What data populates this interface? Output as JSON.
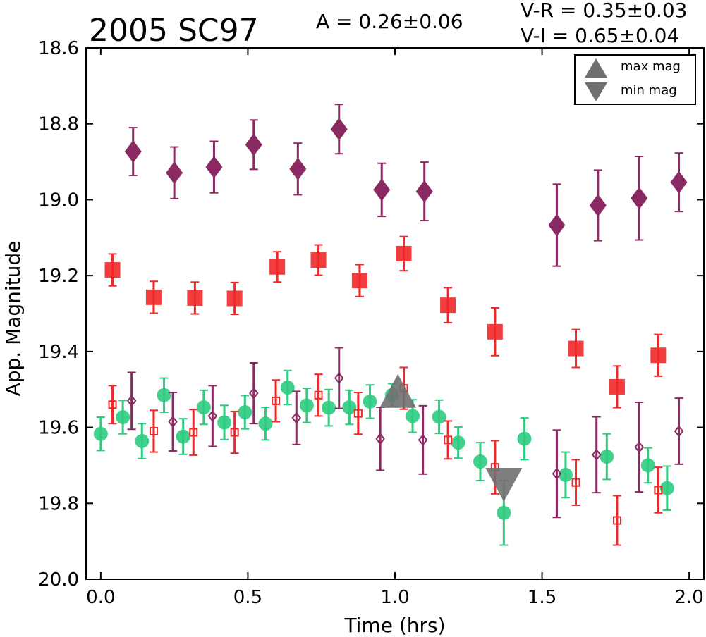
{
  "chart_data": {
    "type": "scatter",
    "title": "2005 SC97",
    "annotations": {
      "amplitude": "A  = 0.26±0.06",
      "v_r": "V-R = 0.35±0.03",
      "v_i": "V-I  = 0.65±0.04"
    },
    "xlabel": "Time (hrs)",
    "ylabel": "App. Magnitude",
    "xlim": [
      -0.05,
      2.05
    ],
    "ylim": [
      20.0,
      18.6
    ],
    "y_inverted": true,
    "x_ticks": [
      "0.0",
      "0.5",
      "1.0",
      "1.5",
      "2.0"
    ],
    "y_ticks": [
      "18.6",
      "18.8",
      "19.0",
      "19.2",
      "19.4",
      "19.6",
      "19.8",
      "20.0"
    ],
    "grid": false,
    "legend": {
      "placement": "top-right",
      "entries": [
        {
          "label": "max mag",
          "marker": "triangle-up",
          "color": "#707070"
        },
        {
          "label": "min mag",
          "marker": "triangle-down",
          "color": "#707070"
        }
      ]
    },
    "series": [
      {
        "marker": "diamond-filled",
        "color": "#8b2a62",
        "points": [
          {
            "x": 0.11,
            "y": 18.873,
            "err": 0.063
          },
          {
            "x": 0.25,
            "y": 18.929,
            "err": 0.068
          },
          {
            "x": 0.385,
            "y": 18.914,
            "err": 0.068
          },
          {
            "x": 0.52,
            "y": 18.855,
            "err": 0.065
          },
          {
            "x": 0.67,
            "y": 18.919,
            "err": 0.068
          },
          {
            "x": 0.81,
            "y": 18.814,
            "err": 0.065
          },
          {
            "x": 0.955,
            "y": 18.974,
            "err": 0.07
          },
          {
            "x": 1.1,
            "y": 18.978,
            "err": 0.077
          },
          {
            "x": 1.55,
            "y": 19.067,
            "err": 0.108
          },
          {
            "x": 1.69,
            "y": 19.015,
            "err": 0.093
          },
          {
            "x": 1.83,
            "y": 18.996,
            "err": 0.11
          },
          {
            "x": 1.965,
            "y": 18.954,
            "err": 0.077
          }
        ]
      },
      {
        "marker": "square-filled",
        "color": "#f02828",
        "points": [
          {
            "x": 0.04,
            "y": 19.185,
            "err": 0.042
          },
          {
            "x": 0.18,
            "y": 19.257,
            "err": 0.042
          },
          {
            "x": 0.32,
            "y": 19.259,
            "err": 0.042
          },
          {
            "x": 0.455,
            "y": 19.26,
            "err": 0.042
          },
          {
            "x": 0.6,
            "y": 19.177,
            "err": 0.04
          },
          {
            "x": 0.74,
            "y": 19.159,
            "err": 0.04
          },
          {
            "x": 0.88,
            "y": 19.213,
            "err": 0.042
          },
          {
            "x": 1.03,
            "y": 19.142,
            "err": 0.045
          },
          {
            "x": 1.18,
            "y": 19.278,
            "err": 0.046
          },
          {
            "x": 1.34,
            "y": 19.348,
            "err": 0.063
          },
          {
            "x": 1.615,
            "y": 19.392,
            "err": 0.05
          },
          {
            "x": 1.755,
            "y": 19.493,
            "err": 0.055
          },
          {
            "x": 1.895,
            "y": 19.41,
            "err": 0.055
          }
        ]
      },
      {
        "marker": "circle-filled",
        "color": "#2ecc80",
        "points": [
          {
            "x": 0.0,
            "y": 19.617,
            "err": 0.044
          },
          {
            "x": 0.075,
            "y": 19.573,
            "err": 0.044
          },
          {
            "x": 0.14,
            "y": 19.636,
            "err": 0.046
          },
          {
            "x": 0.215,
            "y": 19.515,
            "err": 0.045
          },
          {
            "x": 0.28,
            "y": 19.624,
            "err": 0.047
          },
          {
            "x": 0.35,
            "y": 19.547,
            "err": 0.045
          },
          {
            "x": 0.42,
            "y": 19.587,
            "err": 0.045
          },
          {
            "x": 0.49,
            "y": 19.56,
            "err": 0.044
          },
          {
            "x": 0.56,
            "y": 19.59,
            "err": 0.043
          },
          {
            "x": 0.635,
            "y": 19.495,
            "err": 0.045
          },
          {
            "x": 0.7,
            "y": 19.542,
            "err": 0.045
          },
          {
            "x": 0.775,
            "y": 19.548,
            "err": 0.048
          },
          {
            "x": 0.845,
            "y": 19.547,
            "err": 0.045
          },
          {
            "x": 0.915,
            "y": 19.532,
            "err": 0.044
          },
          {
            "x": 0.99,
            "y": 19.515,
            "err": 0.03
          },
          {
            "x": 1.06,
            "y": 19.57,
            "err": 0.043
          },
          {
            "x": 1.15,
            "y": 19.572,
            "err": 0.044
          },
          {
            "x": 1.215,
            "y": 19.64,
            "err": 0.041
          },
          {
            "x": 1.29,
            "y": 19.69,
            "err": 0.05
          },
          {
            "x": 1.37,
            "y": 19.825,
            "err": 0.085
          },
          {
            "x": 1.44,
            "y": 19.63,
            "err": 0.055
          },
          {
            "x": 1.58,
            "y": 19.725,
            "err": 0.06
          },
          {
            "x": 1.72,
            "y": 19.677,
            "err": 0.06
          },
          {
            "x": 1.86,
            "y": 19.7,
            "err": 0.046
          },
          {
            "x": 1.925,
            "y": 19.76,
            "err": 0.058
          }
        ]
      },
      {
        "marker": "square-open",
        "color": "#f02828",
        "points": [
          {
            "x": 0.04,
            "y": 19.54,
            "err": 0.05
          },
          {
            "x": 0.18,
            "y": 19.61,
            "err": 0.055
          },
          {
            "x": 0.315,
            "y": 19.613,
            "err": 0.06
          },
          {
            "x": 0.455,
            "y": 19.613,
            "err": 0.055
          },
          {
            "x": 0.595,
            "y": 19.53,
            "err": 0.055
          },
          {
            "x": 0.74,
            "y": 19.515,
            "err": 0.055
          },
          {
            "x": 0.875,
            "y": 19.563,
            "err": 0.055
          },
          {
            "x": 1.03,
            "y": 19.497,
            "err": 0.055
          },
          {
            "x": 1.18,
            "y": 19.633,
            "err": 0.05
          },
          {
            "x": 1.34,
            "y": 19.705,
            "err": 0.07
          },
          {
            "x": 1.615,
            "y": 19.745,
            "err": 0.06
          },
          {
            "x": 1.755,
            "y": 19.845,
            "err": 0.065
          },
          {
            "x": 1.895,
            "y": 19.765,
            "err": 0.06
          }
        ]
      },
      {
        "marker": "diamond-open",
        "color": "#8b2a62",
        "points": [
          {
            "x": 0.105,
            "y": 19.53,
            "err": 0.075
          },
          {
            "x": 0.245,
            "y": 19.585,
            "err": 0.077
          },
          {
            "x": 0.38,
            "y": 19.57,
            "err": 0.08
          },
          {
            "x": 0.52,
            "y": 19.51,
            "err": 0.08
          },
          {
            "x": 0.665,
            "y": 19.575,
            "err": 0.07
          },
          {
            "x": 0.81,
            "y": 19.47,
            "err": 0.08
          },
          {
            "x": 0.95,
            "y": 19.63,
            "err": 0.083
          },
          {
            "x": 1.095,
            "y": 19.633,
            "err": 0.09
          },
          {
            "x": 1.55,
            "y": 19.722,
            "err": 0.115
          },
          {
            "x": 1.685,
            "y": 19.672,
            "err": 0.1
          },
          {
            "x": 1.83,
            "y": 19.652,
            "err": 0.118
          },
          {
            "x": 1.965,
            "y": 19.61,
            "err": 0.087
          }
        ]
      }
    ],
    "extrema": [
      {
        "label": "max mag",
        "x": 1.01,
        "y": 19.515,
        "marker": "triangle-up",
        "color": "#707070"
      },
      {
        "label": "min mag",
        "x": 1.37,
        "y": 19.74,
        "marker": "triangle-down",
        "color": "#707070"
      }
    ]
  }
}
